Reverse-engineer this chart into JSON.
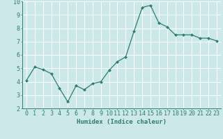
{
  "x": [
    0,
    1,
    2,
    3,
    4,
    5,
    6,
    7,
    8,
    9,
    10,
    11,
    12,
    13,
    14,
    15,
    16,
    17,
    18,
    19,
    20,
    21,
    22,
    23
  ],
  "y": [
    4.1,
    5.1,
    4.9,
    4.6,
    3.5,
    2.5,
    3.7,
    3.4,
    3.85,
    4.0,
    4.85,
    5.5,
    5.85,
    7.75,
    9.55,
    9.7,
    8.4,
    8.1,
    7.5,
    7.5,
    7.5,
    7.25,
    7.25,
    7.05
  ],
  "line_color": "#2d7d6e",
  "marker": "D",
  "marker_size": 2.0,
  "bg_color": "#cce8e8",
  "grid_color": "#ffffff",
  "xlabel": "Humidex (Indice chaleur)",
  "ylabel": "",
  "title": "",
  "xlim": [
    -0.5,
    23.5
  ],
  "ylim": [
    2,
    10
  ],
  "yticks": [
    2,
    3,
    4,
    5,
    6,
    7,
    8,
    9,
    10
  ],
  "xticks": [
    0,
    1,
    2,
    3,
    4,
    5,
    6,
    7,
    8,
    9,
    10,
    11,
    12,
    13,
    14,
    15,
    16,
    17,
    18,
    19,
    20,
    21,
    22,
    23
  ],
  "xlabel_fontsize": 6.5,
  "tick_fontsize": 6.0,
  "linewidth": 0.9
}
